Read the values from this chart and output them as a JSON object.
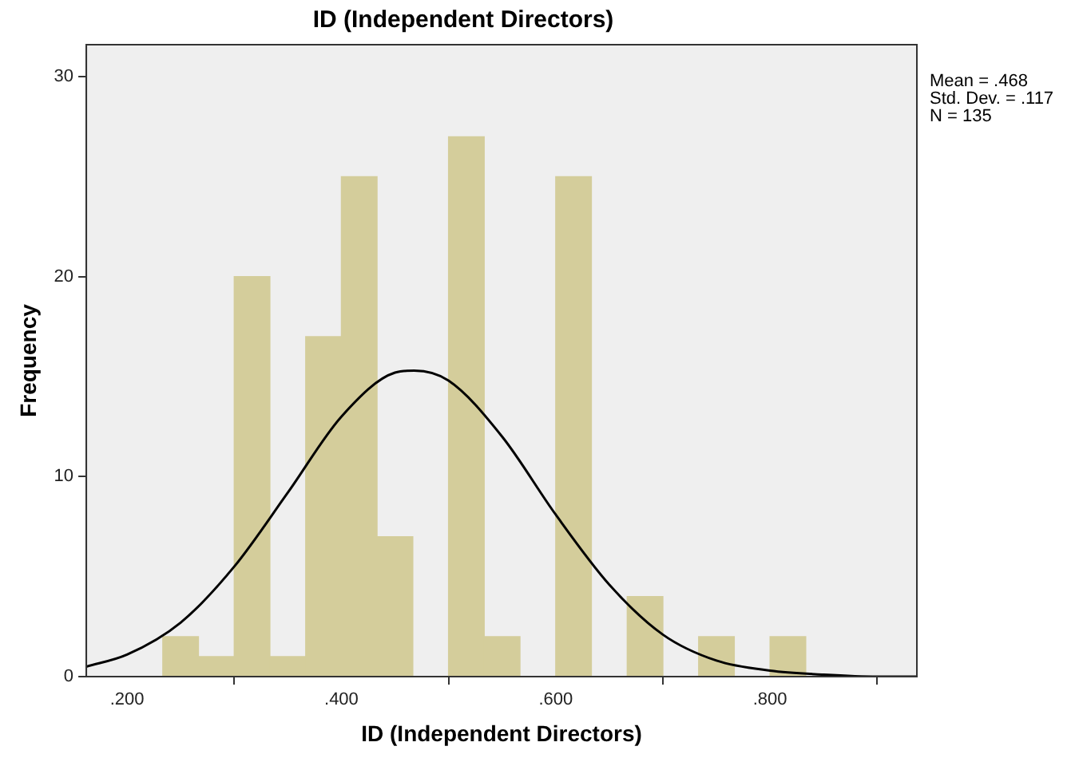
{
  "chart_data": {
    "type": "histogram",
    "title": "ID (Independent Directors)",
    "xlabel": "ID (Independent Directors)",
    "ylabel": "Frequency",
    "color": "#d4cd9b",
    "bins": [
      0.2333,
      0.2667,
      0.3,
      0.3333,
      0.3667,
      0.4,
      0.4333,
      0.4667,
      0.5,
      0.5333,
      0.5667,
      0.6,
      0.6333,
      0.6667,
      0.7,
      0.7333,
      0.7667,
      0.8,
      0.8333
    ],
    "values": [
      2,
      1,
      20,
      1,
      17,
      25,
      7,
      0,
      27,
      2,
      0,
      25,
      0,
      4,
      0,
      2,
      0,
      2
    ],
    "series": [
      {
        "type": "line",
        "color": "#000000",
        "marker": "none",
        "x": [
          0.162,
          0.2,
          0.25,
          0.3,
          0.35,
          0.4,
          0.45,
          0.468,
          0.5,
          0.55,
          0.6,
          0.65,
          0.7,
          0.75,
          0.8,
          0.85,
          0.9,
          0.937
        ],
        "values": [
          0.5,
          1.1,
          2.7,
          5.5,
          9.2,
          13.0,
          15.2,
          15.3,
          14.8,
          12.0,
          8.1,
          4.6,
          2.1,
          0.8,
          0.3,
          0.1,
          0,
          0
        ]
      }
    ],
    "xlim": [
      0.162,
      0.937
    ],
    "xticks": [
      {
        "value": 0.2,
        "label": ".200"
      },
      {
        "value": 0.4,
        "label": ".400"
      },
      {
        "value": 0.6,
        "label": ".600"
      },
      {
        "value": 0.8,
        "label": ".800"
      }
    ],
    "ylim": [
      0,
      31.6
    ],
    "yticks": [
      0,
      10,
      20,
      30
    ],
    "grid": false,
    "legend": false,
    "annotations": [
      "Mean = .468",
      "Std. Dev. = .117",
      "N = 135"
    ]
  }
}
